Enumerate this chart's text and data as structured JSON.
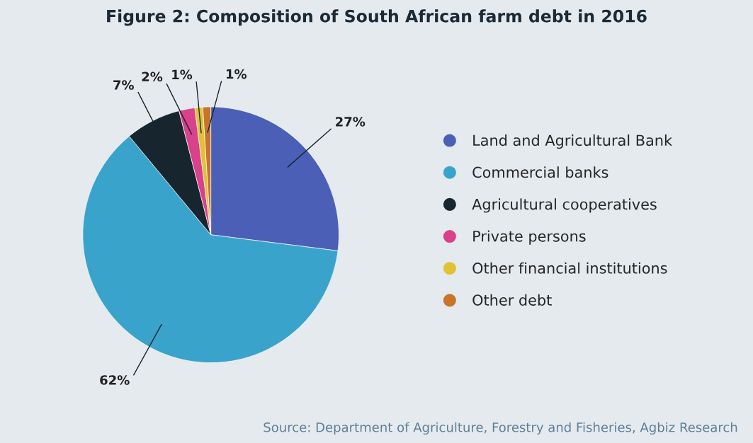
{
  "chart_data": {
    "type": "pie",
    "title": "Figure 2: Composition of South African farm debt in 2016",
    "categories": [
      "Land and Agricultural Bank",
      "Commercial banks",
      "Agricultural cooperatives",
      "Private persons",
      "Other financial institutions",
      "Other debt"
    ],
    "values": [
      27,
      62,
      7,
      2,
      1,
      1
    ],
    "value_labels": [
      "27%",
      "62%",
      "7%",
      "2%",
      "1%",
      "1%"
    ],
    "colors": [
      "#4a5fb5",
      "#3aa3cc",
      "#17262e",
      "#d9418a",
      "#e2c234",
      "#c8742a"
    ],
    "legend": "right",
    "annotations": [
      "Source: Department of Agriculture, Forestry and Fisheries, Agbiz Research"
    ]
  }
}
